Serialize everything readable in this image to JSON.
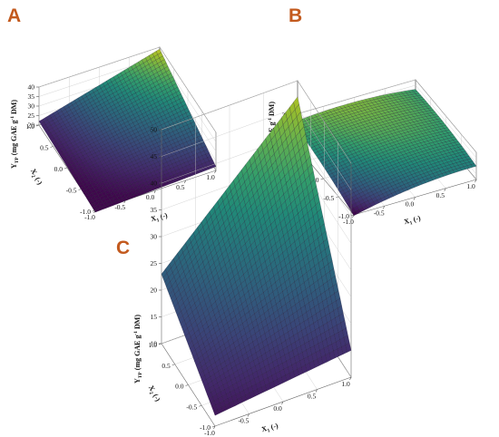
{
  "panels": [
    {
      "label": "A",
      "z_axis": {
        "label": "Y",
        "sub": "TP",
        "unit": " (mg GAE g",
        "sup": "-1",
        "unit2": " DM)",
        "ticks": [
          "20",
          "25",
          "30",
          "35",
          "40"
        ],
        "range": [
          20,
          40
        ]
      },
      "x1_axis": {
        "label": "X",
        "sub": "1",
        "unit": " (-)",
        "ticks": [
          "-1.0",
          "-0.5",
          "0.0",
          "0.5",
          "1.0"
        ]
      },
      "x2_axis": {
        "label": "X",
        "sub": "2",
        "unit": " (-)",
        "ticks": [
          "-1.0",
          "-0.5",
          "0.0",
          "0.5",
          "1.0"
        ]
      }
    },
    {
      "label": "B",
      "z_axis": {
        "label": "Y",
        "sub": "TP",
        "unit": " (mg GAE g",
        "sup": "-1",
        "unit2": " DM)",
        "ticks": [
          "10",
          "15",
          "20",
          "25",
          "30",
          "35"
        ],
        "range": [
          10,
          35
        ]
      },
      "x1_axis": {
        "label": "X",
        "sub": "1",
        "unit": " (-)",
        "ticks": [
          "-1.0",
          "-0.5",
          "0.0",
          "0.5",
          "1.0"
        ]
      },
      "x2_axis": {
        "label": "X",
        "sub": "2",
        "unit": " (-)",
        "ticks": [
          "-1.0",
          "-0.5",
          "0.0",
          "0.5",
          "1.0"
        ]
      }
    },
    {
      "label": "C",
      "z_axis": {
        "label": "Y",
        "sub": "TP",
        "unit": " (mg GAE g",
        "sup": "-1",
        "unit2": " DM)",
        "ticks": [
          "10",
          "15",
          "20",
          "25",
          "30",
          "35",
          "40",
          "45",
          "50"
        ],
        "range": [
          10,
          50
        ]
      },
      "x1_axis": {
        "label": "X",
        "sub": "1",
        "unit": " (-)",
        "ticks": [
          "-1.0",
          "-0.5",
          "0.0",
          "0.5",
          "1.0"
        ]
      },
      "x2_axis": {
        "label": "X",
        "sub": "2",
        "unit": " (-)",
        "ticks": [
          "-1.0",
          "-0.5",
          "0.0",
          "0.5",
          "1.0"
        ]
      }
    }
  ],
  "chart_data": [
    {
      "type": "surface",
      "panel": "A",
      "zlabel": "YTP (mg GAE g-1 DM)",
      "xlabel": "X1 (-)",
      "ylabel": "X2 (-)",
      "xlim": [
        -1,
        1
      ],
      "ylim": [
        -1,
        1
      ],
      "zlim": [
        20,
        40
      ],
      "grid": true,
      "colormap": "viridis",
      "corners": {
        "x1_-1_x2_-1": 19,
        "x1_1_x2_-1": 22,
        "x1_-1_x2_1": 22,
        "x1_1_x2_1": 39
      }
    },
    {
      "type": "surface",
      "panel": "B",
      "zlabel": "YTP (mg GAE g-1 DM)",
      "xlabel": "X1 (-)",
      "ylabel": "X2 (-)",
      "xlim": [
        -1,
        1
      ],
      "ylim": [
        -1,
        1
      ],
      "zlim": [
        10,
        35
      ],
      "grid": true,
      "colormap": "viridis",
      "corners": {
        "x1_-1_x2_-1": 8,
        "x1_1_x2_-1": 21,
        "x1_-1_x2_1": 27,
        "x1_1_x2_1": 25
      },
      "maximum": {
        "x1": 0.2,
        "x2": 0.7,
        "value": 31.5
      }
    },
    {
      "type": "surface",
      "panel": "C",
      "zlabel": "YTP (mg GAE g-1 DM)",
      "xlabel": "X1 (-)",
      "ylabel": "X2 (-)",
      "xlim": [
        -1,
        1
      ],
      "ylim": [
        -1,
        1
      ],
      "zlim": [
        10,
        50
      ],
      "grid": true,
      "colormap": "viridis",
      "corners": {
        "x1_-1_x2_-1": 12,
        "x1_1_x2_-1": 15,
        "x1_-1_x2_1": 23,
        "x1_1_x2_1": 47
      }
    }
  ]
}
